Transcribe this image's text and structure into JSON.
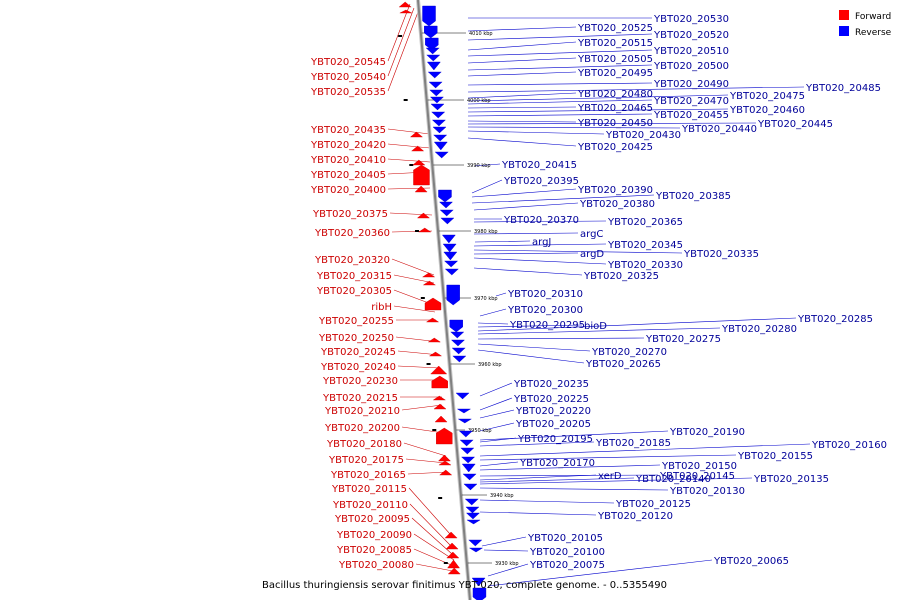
{
  "caption": "Bacillus thuringiensis serovar finitimus YBT-020, complete genome. - 0..5355490",
  "legend": [
    {
      "label": "Forward",
      "color": "#ff0000"
    },
    {
      "label": "Reverse",
      "color": "#0000ff"
    }
  ],
  "colors": {
    "forward_fill": "#ff0000",
    "forward_line": "#cc0000",
    "reverse_fill": "#0000ff",
    "reverse_line": "#0000cc",
    "axis": "#808080"
  },
  "ticks": [
    "4010 kbp",
    "4000 kbp",
    "3990 kbp",
    "3980 kbp",
    "3970 kbp",
    "3960 kbp",
    "3950 kbp",
    "3940 kbp",
    "3930 kbp"
  ],
  "forward_labels": [
    "YBT020_20545",
    "YBT020_20540",
    "YBT020_20535",
    "YBT020_20435",
    "YBT020_20420",
    "YBT020_20410",
    "YBT020_20405",
    "YBT020_20400",
    "YBT020_20375",
    "YBT020_20360",
    "YBT020_20320",
    "YBT020_20315",
    "YBT020_20305",
    "ribH",
    "YBT020_20255",
    "YBT020_20250",
    "YBT020_20245",
    "YBT020_20240",
    "YBT020_20230",
    "YBT020_20215",
    "YBT020_20210",
    "YBT020_20200",
    "YBT020_20180",
    "YBT020_20175",
    "YBT020_20165",
    "YBT020_20115",
    "YBT020_20110",
    "YBT020_20095",
    "YBT020_20090",
    "YBT020_20085",
    "YBT020_20080"
  ],
  "reverse_labels": [
    "YBT020_20530",
    "YBT020_20525",
    "YBT020_20520",
    "YBT020_20515",
    "YBT020_20510",
    "YBT020_20505",
    "YBT020_20500",
    "YBT020_20495",
    "YBT020_20490",
    "YBT020_20485",
    "YBT020_20480",
    "YBT020_20475",
    "YBT020_20470",
    "YBT020_20465",
    "YBT020_20460",
    "YBT020_20455",
    "YBT020_20450",
    "YBT020_20445",
    "YBT020_20440",
    "YBT020_20430",
    "YBT020_20425",
    "YBT020_20415",
    "YBT020_20395",
    "YBT020_20390",
    "YBT020_20385",
    "YBT020_20380",
    "YBT020_20370",
    "YBT020_20365",
    "argC",
    "argJ",
    "YBT020_20345",
    "YBT020_20335",
    "argD",
    "YBT020_20330",
    "YBT020_20325",
    "YBT020_20310",
    "YBT020_20300",
    "YBT020_20295",
    "bioD",
    "YBT020_20285",
    "YBT020_20280",
    "YBT020_20275",
    "YBT020_20270",
    "YBT020_20265",
    "YBT020_20235",
    "YBT020_20225",
    "YBT020_20220",
    "YBT020_20205",
    "YBT020_20195",
    "YBT020_20190",
    "YBT020_20185",
    "YBT020_20160",
    "YBT020_20155",
    "YBT020_20170",
    "YBT020_20150",
    "YBT020_20145",
    "xerD",
    "YBT020_20140",
    "YBT020_20135",
    "YBT020_20130",
    "YBT020_20125",
    "YBT020_20120",
    "YBT020_20105",
    "YBT020_20100",
    "YBT020_20075",
    "YBT020_20065"
  ]
}
